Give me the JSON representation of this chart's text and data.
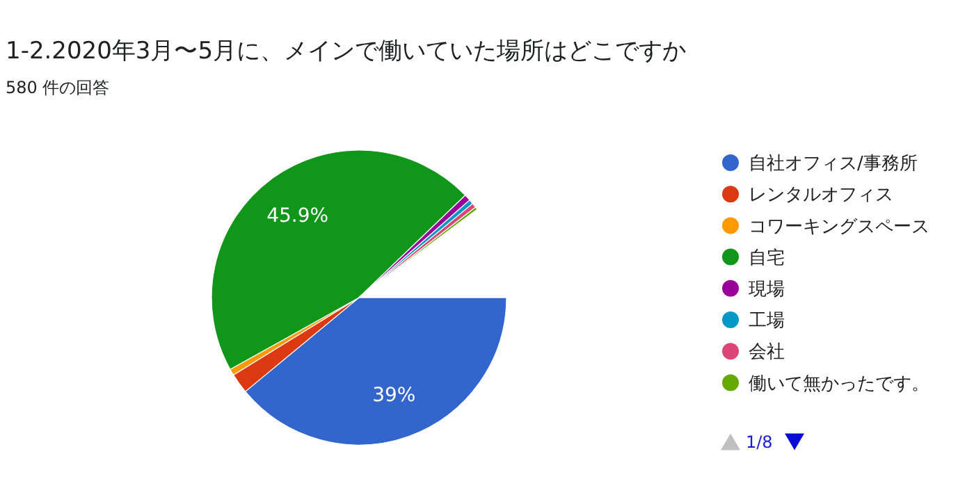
{
  "chart_data": {
    "type": "pie",
    "title": "1-2.2020年3月〜5月に、メインで働いていた場所はどこですか",
    "subtitle": "580 件の回答",
    "categories": [
      "自社オフィス/事務所",
      "レンタルオフィス",
      "コワーキングスペース",
      "自宅",
      "現場",
      "工場",
      "会社",
      "働いて無かったです。",
      null
    ],
    "values": [
      39,
      2.2,
      0.7,
      45.9,
      0.7,
      0.5,
      0.5,
      0.3,
      10.2
    ],
    "colors": [
      "#3366cc",
      "#dc3912",
      "#ff9900",
      "#109618",
      "#990099",
      "#0099c6",
      "#dd4477",
      "#66aa00",
      "#ffffff"
    ],
    "value_labels": [
      "39%",
      null,
      null,
      "45.9%",
      null,
      null,
      null,
      null,
      null
    ],
    "legend": "right",
    "annotations": [
      "1/8"
    ]
  }
}
